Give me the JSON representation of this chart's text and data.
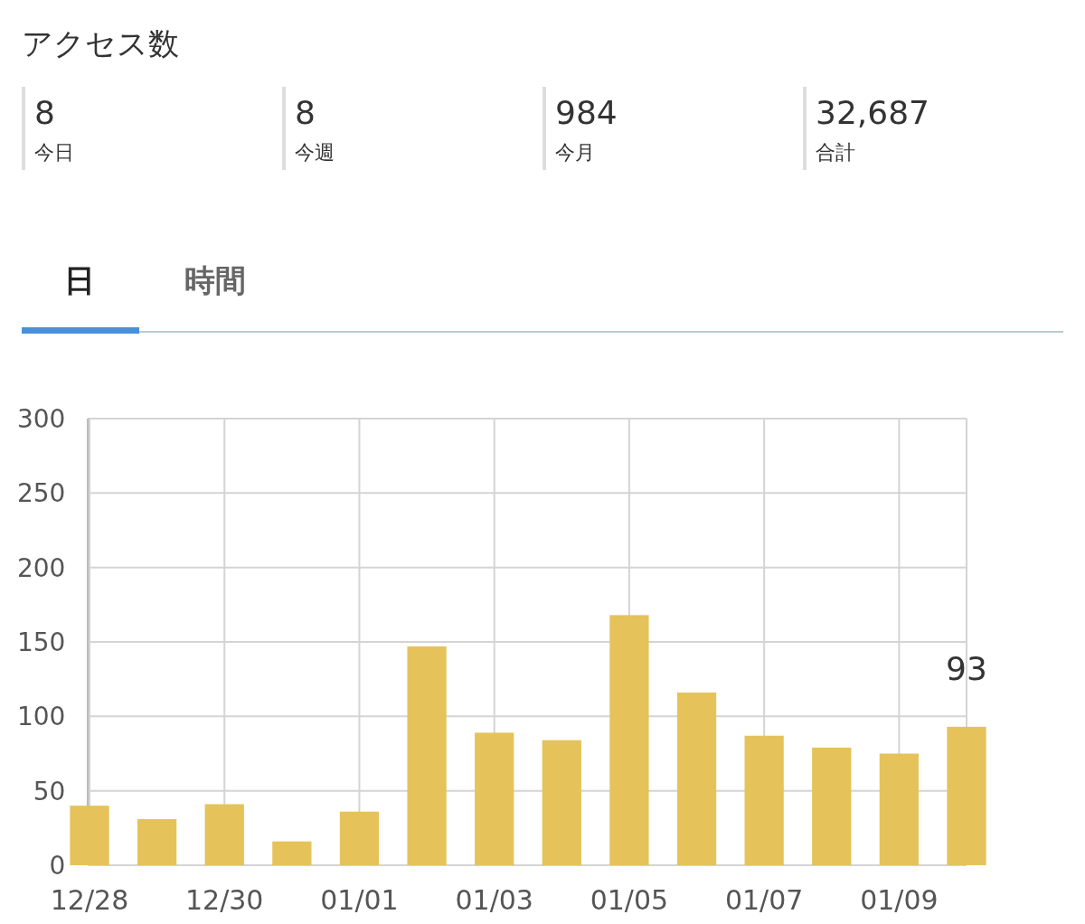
{
  "chart_data": [
    {
      "type": "other",
      "title": "アクセス数",
      "annotations": [
        "8",
        "今日",
        "8",
        "今週",
        "984",
        "今月",
        "32,687",
        "合計",
        "日",
        "時間"
      ]
    },
    {
      "type": "bar",
      "categories": [
        "12/28",
        null,
        "12/30",
        null,
        "01/01",
        null,
        "01/03",
        null,
        "01/05",
        null,
        "01/07",
        null,
        "01/09",
        null
      ],
      "values": [
        40,
        31,
        41,
        16,
        36,
        147,
        89,
        84,
        168,
        116,
        87,
        79,
        75,
        93
      ],
      "value_labels": [
        null,
        null,
        null,
        null,
        null,
        null,
        null,
        null,
        null,
        null,
        null,
        null,
        null,
        "93"
      ],
      "color": "#e5c35a",
      "ylim": [
        0,
        300
      ],
      "yticks": [
        0,
        50,
        100,
        150,
        200,
        250,
        300
      ],
      "grid": true
    }
  ]
}
